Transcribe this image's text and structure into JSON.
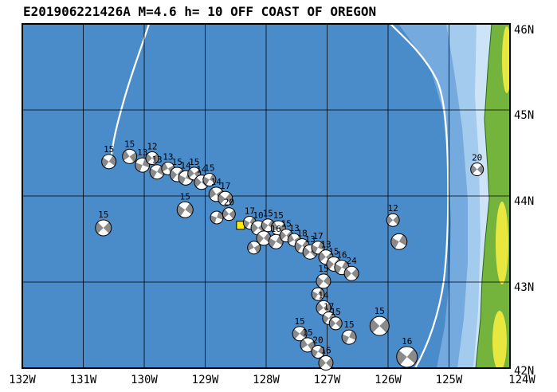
{
  "title": "E201906221426A M=4.6 h= 10 OFF COAST OF OREGON",
  "map": {
    "lon_range": [
      -132,
      -124
    ],
    "lat_range": [
      42,
      46
    ],
    "lon_labels": [
      "132W",
      "131W",
      "130W",
      "129W",
      "128W",
      "127W",
      "126W",
      "125W",
      "124W"
    ],
    "lat_labels": [
      "46N",
      "45N",
      "44N",
      "43N",
      "42N"
    ],
    "colors": {
      "ocean": "#4a8bca",
      "shelf_mid": "#74aadd",
      "shelf_light": "#a3cbee",
      "shelf_lightest": "#cde4f7",
      "land_green": "#74b43c",
      "land_yellow": "#e8e73f",
      "boundary_line": "#ffffff",
      "beachball_fill": "#8a8a8a",
      "event_marker": "#ffee00"
    },
    "main_event": {
      "lon": -128.42,
      "lat": 43.66,
      "size": 10
    },
    "beachballs": [
      {
        "lon": -130.58,
        "lat": 44.4,
        "r": 9,
        "rot": 35,
        "label": "15"
      },
      {
        "lon": -130.24,
        "lat": 44.46,
        "r": 9,
        "rot": 55,
        "label": "15"
      },
      {
        "lon": -130.03,
        "lat": 44.36,
        "r": 9,
        "rot": 20,
        "label": "13"
      },
      {
        "lon": -129.87,
        "lat": 44.44,
        "r": 8,
        "rot": 45,
        "label": "12"
      },
      {
        "lon": -129.79,
        "lat": 44.28,
        "r": 9,
        "rot": 30,
        "label": "13"
      },
      {
        "lon": -129.61,
        "lat": 44.32,
        "r": 8,
        "rot": 60,
        "label": "13"
      },
      {
        "lon": -129.46,
        "lat": 44.25,
        "r": 9,
        "rot": 40,
        "label": "15"
      },
      {
        "lon": -129.32,
        "lat": 44.21,
        "r": 9,
        "rot": 25,
        "label": "14"
      },
      {
        "lon": -129.18,
        "lat": 44.26,
        "r": 8,
        "rot": 50,
        "label": "15"
      },
      {
        "lon": -129.06,
        "lat": 44.16,
        "r": 9,
        "rot": 45,
        "label": "14"
      },
      {
        "lon": -128.93,
        "lat": 44.19,
        "r": 8,
        "rot": 30,
        "label": "15"
      },
      {
        "lon": -128.82,
        "lat": 44.02,
        "r": 9,
        "rot": 55,
        "label": "14"
      },
      {
        "lon": -128.67,
        "lat": 43.97,
        "r": 9,
        "rot": 40,
        "label": "17"
      },
      {
        "lon": -129.33,
        "lat": 43.84,
        "r": 10,
        "rot": 35,
        "label": "15"
      },
      {
        "lon": -130.67,
        "lat": 43.63,
        "r": 10,
        "rot": 45,
        "label": "15"
      },
      {
        "lon": -128.81,
        "lat": 43.75,
        "r": 8,
        "rot": 20,
        "label": ""
      },
      {
        "lon": -128.61,
        "lat": 43.79,
        "r": 8,
        "rot": 50,
        "label": "20"
      },
      {
        "lon": -128.27,
        "lat": 43.69,
        "r": 8,
        "rot": 30,
        "label": "17"
      },
      {
        "lon": -128.13,
        "lat": 43.63,
        "r": 9,
        "rot": 45,
        "label": "10"
      },
      {
        "lon": -127.97,
        "lat": 43.66,
        "r": 8,
        "rot": 35,
        "label": "15"
      },
      {
        "lon": -127.8,
        "lat": 43.63,
        "r": 9,
        "rot": 55,
        "label": "15"
      },
      {
        "lon": -128.04,
        "lat": 43.51,
        "r": 9,
        "rot": 40,
        "label": ""
      },
      {
        "lon": -127.84,
        "lat": 43.47,
        "r": 9,
        "rot": 30,
        "label": "16"
      },
      {
        "lon": -127.67,
        "lat": 43.54,
        "r": 8,
        "rot": 45,
        "label": "15"
      },
      {
        "lon": -127.54,
        "lat": 43.49,
        "r": 8,
        "rot": 60,
        "label": "13"
      },
      {
        "lon": -127.41,
        "lat": 43.42,
        "r": 9,
        "rot": 35,
        "label": "18"
      },
      {
        "lon": -127.28,
        "lat": 43.35,
        "r": 9,
        "rot": 45,
        "label": "13"
      },
      {
        "lon": -127.15,
        "lat": 43.4,
        "r": 8,
        "rot": 25,
        "label": "17"
      },
      {
        "lon": -127.02,
        "lat": 43.29,
        "r": 9,
        "rot": 50,
        "label": "13"
      },
      {
        "lon": -126.89,
        "lat": 43.21,
        "r": 9,
        "rot": 40,
        "label": "15"
      },
      {
        "lon": -126.76,
        "lat": 43.17,
        "r": 9,
        "rot": 30,
        "label": "16"
      },
      {
        "lon": -126.6,
        "lat": 43.1,
        "r": 9,
        "rot": 45,
        "label": "24"
      },
      {
        "lon": -128.2,
        "lat": 43.4,
        "r": 8,
        "rot": 60,
        "label": ""
      },
      {
        "lon": -127.06,
        "lat": 43.01,
        "r": 9,
        "rot": 40,
        "label": "15"
      },
      {
        "lon": -127.15,
        "lat": 42.86,
        "r": 8,
        "rot": 30,
        "label": ""
      },
      {
        "lon": -127.06,
        "lat": 42.7,
        "r": 9,
        "rot": 50,
        "label": "14"
      },
      {
        "lon": -126.97,
        "lat": 42.58,
        "r": 8,
        "rot": 35,
        "label": "17"
      },
      {
        "lon": -126.86,
        "lat": 42.52,
        "r": 8,
        "rot": 45,
        "label": "15"
      },
      {
        "lon": -127.45,
        "lat": 42.4,
        "r": 9,
        "rot": 40,
        "label": "15"
      },
      {
        "lon": -127.32,
        "lat": 42.27,
        "r": 9,
        "rot": 55,
        "label": "15"
      },
      {
        "lon": -127.15,
        "lat": 42.19,
        "r": 8,
        "rot": 30,
        "label": "20"
      },
      {
        "lon": -127.02,
        "lat": 42.06,
        "r": 9,
        "rot": 45,
        "label": "16"
      },
      {
        "lon": -126.64,
        "lat": 42.36,
        "r": 9,
        "rot": 25,
        "label": "15"
      },
      {
        "lon": -126.14,
        "lat": 42.49,
        "r": 12,
        "rot": 45,
        "label": "15"
      },
      {
        "lon": -125.69,
        "lat": 42.13,
        "r": 13,
        "rot": 40,
        "label": "16"
      },
      {
        "lon": -125.92,
        "lat": 43.72,
        "r": 8,
        "rot": 45,
        "label": "12"
      },
      {
        "lon": -125.82,
        "lat": 43.47,
        "r": 10,
        "rot": 30,
        "label": ""
      },
      {
        "lon": -124.54,
        "lat": 44.31,
        "r": 8,
        "rot": 45,
        "label": "20"
      }
    ]
  }
}
